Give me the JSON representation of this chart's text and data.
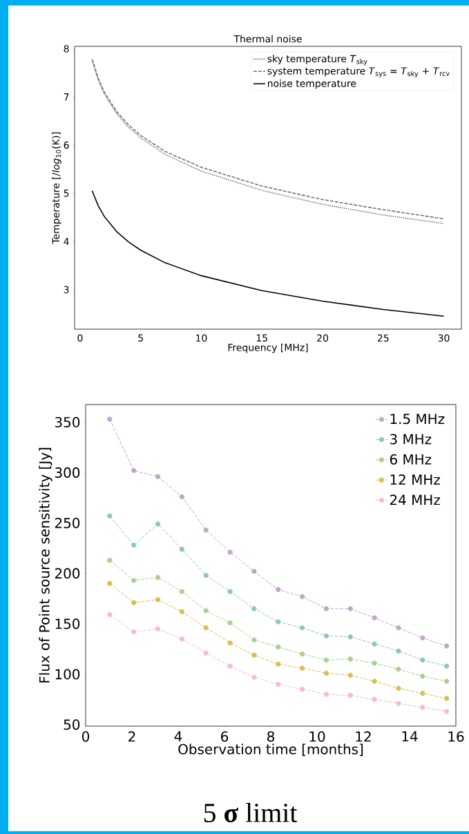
{
  "chart_data": [
    {
      "type": "line",
      "title": "Thermal noise",
      "xlabel": "Frequency [MHz]",
      "ylabel": "Temperature [/*log*$_{10}$(K)]",
      "x": [
        1,
        1.5,
        2,
        3,
        4,
        5,
        7,
        10,
        15,
        20,
        25,
        30
      ],
      "series": [
        {
          "name": "sky temperature *T*$_{sky}$",
          "color": "#707070",
          "line_style": "dotted",
          "values": [
            7.75,
            7.35,
            7.06,
            6.66,
            6.37,
            6.15,
            5.81,
            5.46,
            5.06,
            4.77,
            4.55,
            4.37
          ]
        },
        {
          "name": "system temperature *T*$_{sys}$ = *T*$_{sky}$ + *T*$_{rcv}$",
          "color": "#707070",
          "line_style": "dashed",
          "values": [
            7.78,
            7.38,
            7.1,
            6.7,
            6.42,
            6.2,
            5.87,
            5.54,
            5.15,
            4.87,
            4.66,
            4.47
          ]
        },
        {
          "name": "noise temperature",
          "color": "#000000",
          "line_style": "solid",
          "values": [
            5.05,
            4.74,
            4.52,
            4.21,
            3.99,
            3.82,
            3.56,
            3.29,
            2.98,
            2.76,
            2.59,
            2.45
          ]
        }
      ],
      "xlim": [
        -0.45,
        31.45
      ],
      "ylim": [
        2.18,
        8.05
      ],
      "xticks": [
        0,
        5,
        10,
        15,
        20,
        25,
        30
      ],
      "yticks": [
        3,
        4,
        5,
        6,
        7,
        8
      ],
      "legend": "top right"
    },
    {
      "type": "line",
      "xlabel": "Observation time [months]",
      "ylabel": "Flux of Point source sensitivity [Jy]",
      "x": [
        1.04,
        2.08,
        3.12,
        4.16,
        5.2,
        6.24,
        7.28,
        8.32,
        9.36,
        10.4,
        11.44,
        12.48,
        13.52,
        14.56,
        15.6
      ],
      "series": [
        {
          "name": "1.5 MHz",
          "color": "#c3a5cc",
          "values": [
            353,
            302,
            296,
            276,
            243,
            221,
            202,
            184,
            177,
            165,
            165,
            156,
            146,
            136,
            128
          ]
        },
        {
          "name": "3 MHz",
          "color": "#8ec5c2",
          "values": [
            257,
            228,
            249,
            224,
            198,
            182,
            165,
            152,
            146,
            138,
            137,
            130,
            123,
            114,
            108
          ]
        },
        {
          "name": "6 MHz",
          "color": "#a8d18f",
          "values": [
            213,
            193,
            196,
            182,
            163,
            151,
            134,
            127,
            120,
            114,
            115,
            111,
            105,
            98,
            93
          ]
        },
        {
          "name": "12 MHz",
          "color": "#d9bf4c",
          "values": [
            190,
            171,
            174,
            162,
            146,
            131,
            119,
            110,
            106,
            101,
            99,
            93,
            86,
            81,
            76
          ]
        },
        {
          "name": "24 MHz",
          "color": "#f4bcd0",
          "values": [
            159,
            142,
            145,
            135,
            121,
            108,
            97,
            90,
            85,
            80,
            79,
            75,
            71,
            67,
            63
          ]
        }
      ],
      "xlim": [
        0,
        16
      ],
      "ylim": [
        48.5,
        367.5
      ],
      "xticks": [
        0,
        2,
        4,
        6,
        8,
        10,
        12,
        14,
        16
      ],
      "yticks": [
        50,
        100,
        150,
        200,
        250,
        300,
        350
      ],
      "marker": "circle",
      "line_style": "dashed",
      "legend": "top right",
      "annotations": [
        "5 **σ** limit"
      ]
    }
  ]
}
